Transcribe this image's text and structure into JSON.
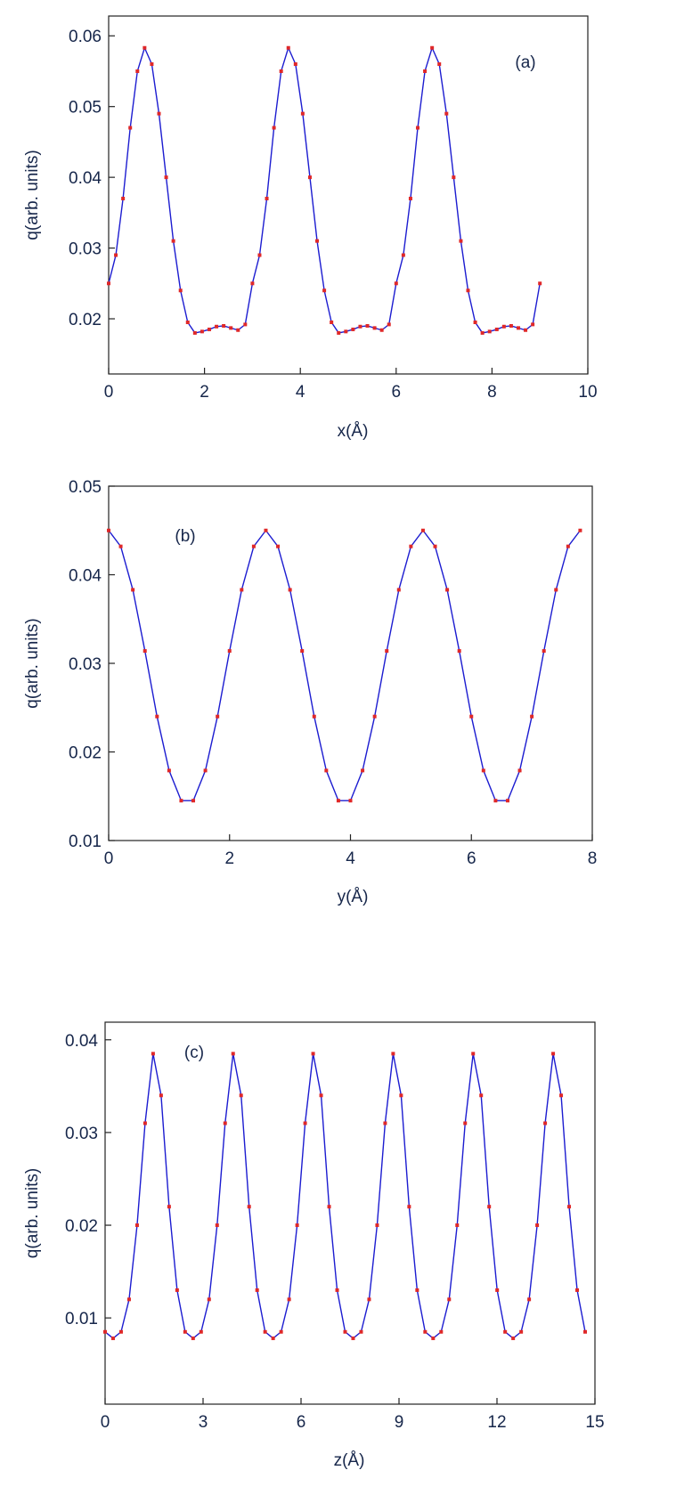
{
  "chart_data": [
    {
      "type": "line",
      "annotation": "(a)",
      "x_label": "x(Å)",
      "y_label": "q(arb. units)",
      "xlim": [
        0,
        10
      ],
      "xticks": [
        0,
        2,
        4,
        6,
        8,
        10
      ],
      "ylim": [
        0.0122,
        0.0628
      ],
      "yticks": [
        0.02,
        0.03,
        0.04,
        0.05,
        0.06
      ],
      "x": [
        0,
        0.15,
        0.3,
        0.45,
        0.6,
        0.75,
        0.9,
        1.05,
        1.2,
        1.35,
        1.5,
        1.65,
        1.8,
        1.95,
        2.1,
        2.25,
        2.4,
        2.55,
        2.7,
        2.85,
        3,
        3.15,
        3.3,
        3.45,
        3.6,
        3.75,
        3.9,
        4.05,
        4.2,
        4.35,
        4.5,
        4.65,
        4.8,
        4.95,
        5.1,
        5.25,
        5.4,
        5.55,
        5.7,
        5.85,
        6,
        6.15,
        6.3,
        6.45,
        6.6,
        6.75,
        6.9,
        7.05,
        7.2,
        7.35,
        7.5,
        7.65,
        7.8,
        7.95,
        8.1,
        8.25,
        8.4,
        8.55,
        8.7,
        8.85,
        9
      ],
      "series": [
        {
          "color": "#1c1cd0",
          "marker_color": "#e02828",
          "values": [
            0.025,
            0.029,
            0.037,
            0.047,
            0.055,
            0.0583,
            0.056,
            0.049,
            0.04,
            0.031,
            0.024,
            0.0195,
            0.018,
            0.0182,
            0.0185,
            0.0189,
            0.019,
            0.0187,
            0.0184,
            0.0192,
            0.025,
            0.029,
            0.037,
            0.047,
            0.055,
            0.0583,
            0.056,
            0.049,
            0.04,
            0.031,
            0.024,
            0.0195,
            0.018,
            0.0182,
            0.0185,
            0.0189,
            0.019,
            0.0187,
            0.0184,
            0.0192,
            0.025,
            0.029,
            0.037,
            0.047,
            0.055,
            0.0583,
            0.056,
            0.049,
            0.04,
            0.031,
            0.024,
            0.0195,
            0.018,
            0.0182,
            0.0185,
            0.0189,
            0.019,
            0.0187,
            0.0184,
            0.0192,
            0.025
          ]
        }
      ]
    },
    {
      "type": "line",
      "annotation": "(b)",
      "x_label": "y(Å)",
      "y_label": "q(arb. units)",
      "xlim": [
        0,
        8
      ],
      "xticks": [
        0,
        2,
        4,
        6,
        8
      ],
      "ylim": [
        0.01,
        0.05
      ],
      "yticks": [
        0.01,
        0.02,
        0.03,
        0.04,
        0.05
      ],
      "x": [
        0,
        0.2,
        0.4,
        0.6,
        0.8,
        1,
        1.2,
        1.4,
        1.6,
        1.8,
        2,
        2.2,
        2.4,
        2.6,
        2.8,
        3,
        3.2,
        3.4,
        3.6,
        3.8,
        4,
        4.2,
        4.4,
        4.6,
        4.8,
        5,
        5.2,
        5.4,
        5.6,
        5.8,
        6,
        6.2,
        6.4,
        6.6,
        6.8,
        7,
        7.2,
        7.4,
        7.6,
        7.8
      ],
      "series": [
        {
          "color": "#1c1cd0",
          "marker_color": "#e02828",
          "values": [
            0.045,
            0.0432,
            0.0383,
            0.0314,
            0.024,
            0.0179,
            0.0145,
            0.0145,
            0.0179,
            0.024,
            0.0314,
            0.0383,
            0.0432,
            0.045,
            0.0432,
            0.0383,
            0.0314,
            0.024,
            0.0179,
            0.0145,
            0.0145,
            0.0179,
            0.024,
            0.0314,
            0.0383,
            0.0432,
            0.045,
            0.0432,
            0.0383,
            0.0314,
            0.024,
            0.0179,
            0.0145,
            0.0145,
            0.0179,
            0.024,
            0.0314,
            0.0383,
            0.0432,
            0.045
          ]
        }
      ]
    },
    {
      "type": "line",
      "annotation": "(c)",
      "x_label": "z(Å)",
      "y_label": "q(arb. units)",
      "xlim": [
        0,
        15
      ],
      "xticks": [
        0,
        3,
        6,
        9,
        12,
        15
      ],
      "ylim": [
        0.0007,
        0.0419
      ],
      "yticks": [
        0.01,
        0.02,
        0.03,
        0.04
      ],
      "x": [
        0,
        0.245,
        0.49,
        0.735,
        0.98,
        1.225,
        1.47,
        1.715,
        1.96,
        2.205,
        2.45,
        2.695,
        2.94,
        3.185,
        3.43,
        3.675,
        3.92,
        4.165,
        4.41,
        4.655,
        4.9,
        5.145,
        5.39,
        5.635,
        5.88,
        6.125,
        6.37,
        6.615,
        6.86,
        7.105,
        7.35,
        7.595,
        7.84,
        8.085,
        8.33,
        8.575,
        8.82,
        9.065,
        9.31,
        9.555,
        9.8,
        10.045,
        10.29,
        10.535,
        10.78,
        11.025,
        11.27,
        11.515,
        11.76,
        12.005,
        12.25,
        12.495,
        12.74,
        12.985,
        13.23,
        13.475,
        13.72,
        13.965,
        14.21,
        14.455,
        14.7
      ],
      "series": [
        {
          "color": "#1c1cd0",
          "marker_color": "#e02828",
          "values": [
            0.0085,
            0.0078,
            0.0085,
            0.012,
            0.02,
            0.031,
            0.0385,
            0.034,
            0.022,
            0.013,
            0.0085,
            0.0078,
            0.0085,
            0.012,
            0.02,
            0.031,
            0.0385,
            0.034,
            0.022,
            0.013,
            0.0085,
            0.0078,
            0.0085,
            0.012,
            0.02,
            0.031,
            0.0385,
            0.034,
            0.022,
            0.013,
            0.0085,
            0.0078,
            0.0085,
            0.012,
            0.02,
            0.031,
            0.0385,
            0.034,
            0.022,
            0.013,
            0.0085,
            0.0078,
            0.0085,
            0.012,
            0.02,
            0.031,
            0.0385,
            0.034,
            0.022,
            0.013,
            0.0085,
            0.0078,
            0.0085,
            0.012,
            0.02,
            0.031,
            0.0385,
            0.034,
            0.022,
            0.013,
            0.0085
          ]
        }
      ]
    }
  ]
}
